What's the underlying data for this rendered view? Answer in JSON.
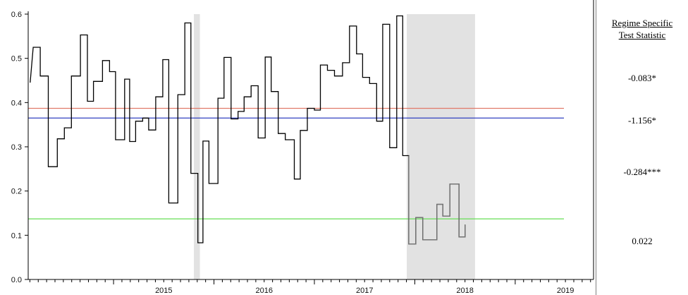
{
  "chart_data": {
    "type": "line",
    "ylim": [
      0,
      0.6
    ],
    "yticks": [
      "0.0",
      "0.1",
      "0.2",
      "0.3",
      "0.4",
      "0.5",
      "0.6"
    ],
    "xlim": [
      2014.15,
      2019.78
    ],
    "xticks": [
      "2015",
      "2016",
      "2017",
      "2018",
      "2019"
    ],
    "xtick_values": [
      2015,
      2016,
      2017,
      2018,
      2019
    ],
    "series": [
      {
        "color": "#000000",
        "values": [
          [
            2014.17,
            0.445
          ],
          [
            2014.2,
            0.525
          ],
          [
            2014.27,
            0.525
          ],
          [
            2014.27,
            0.46
          ],
          [
            2014.35,
            0.46
          ],
          [
            2014.35,
            0.255
          ],
          [
            2014.44,
            0.255
          ],
          [
            2014.44,
            0.318
          ],
          [
            2014.51,
            0.318
          ],
          [
            2014.51,
            0.343
          ],
          [
            2014.58,
            0.343
          ],
          [
            2014.58,
            0.46
          ],
          [
            2014.67,
            0.46
          ],
          [
            2014.67,
            0.553
          ],
          [
            2014.74,
            0.553
          ],
          [
            2014.74,
            0.403
          ],
          [
            2014.8,
            0.403
          ],
          [
            2014.8,
            0.448
          ],
          [
            2014.89,
            0.448
          ],
          [
            2014.89,
            0.495
          ],
          [
            2014.96,
            0.495
          ],
          [
            2014.96,
            0.47
          ],
          [
            2015.02,
            0.47
          ],
          [
            2015.02,
            0.316
          ],
          [
            2015.11,
            0.316
          ],
          [
            2015.11,
            0.453
          ],
          [
            2015.16,
            0.453
          ],
          [
            2015.16,
            0.312
          ],
          [
            2015.22,
            0.312
          ],
          [
            2015.22,
            0.358
          ],
          [
            2015.29,
            0.358
          ],
          [
            2015.29,
            0.365
          ],
          [
            2015.35,
            0.365
          ],
          [
            2015.35,
            0.338
          ],
          [
            2015.42,
            0.338
          ],
          [
            2015.42,
            0.413
          ],
          [
            2015.49,
            0.413
          ],
          [
            2015.49,
            0.497
          ],
          [
            2015.55,
            0.497
          ],
          [
            2015.55,
            0.173
          ],
          [
            2015.64,
            0.173
          ],
          [
            2015.64,
            0.418
          ],
          [
            2015.71,
            0.418
          ],
          [
            2015.71,
            0.58
          ],
          [
            2015.77,
            0.58
          ],
          [
            2015.77,
            0.24
          ],
          [
            2015.84,
            0.24
          ],
          [
            2015.84,
            0.083
          ],
          [
            2015.89,
            0.083
          ],
          [
            2015.89,
            0.313
          ],
          [
            2015.95,
            0.313
          ],
          [
            2015.95,
            0.217
          ],
          [
            2016.04,
            0.217
          ],
          [
            2016.04,
            0.41
          ],
          [
            2016.1,
            0.41
          ],
          [
            2016.1,
            0.502
          ],
          [
            2016.17,
            0.502
          ],
          [
            2016.17,
            0.363
          ],
          [
            2016.24,
            0.363
          ],
          [
            2016.24,
            0.38
          ],
          [
            2016.3,
            0.38
          ],
          [
            2016.3,
            0.413
          ],
          [
            2016.37,
            0.413
          ],
          [
            2016.37,
            0.438
          ],
          [
            2016.44,
            0.438
          ],
          [
            2016.44,
            0.32
          ],
          [
            2016.51,
            0.32
          ],
          [
            2016.51,
            0.503
          ],
          [
            2016.57,
            0.503
          ],
          [
            2016.57,
            0.425
          ],
          [
            2016.64,
            0.425
          ],
          [
            2016.64,
            0.33
          ],
          [
            2016.71,
            0.33
          ],
          [
            2016.71,
            0.316
          ],
          [
            2016.8,
            0.316
          ],
          [
            2016.8,
            0.227
          ],
          [
            2016.86,
            0.227
          ],
          [
            2016.86,
            0.337
          ],
          [
            2016.93,
            0.337
          ],
          [
            2016.93,
            0.387
          ],
          [
            2017.0,
            0.387
          ],
          [
            2017.0,
            0.383
          ],
          [
            2017.06,
            0.383
          ],
          [
            2017.06,
            0.485
          ],
          [
            2017.13,
            0.485
          ],
          [
            2017.13,
            0.473
          ],
          [
            2017.2,
            0.473
          ],
          [
            2017.2,
            0.46
          ],
          [
            2017.28,
            0.46
          ],
          [
            2017.28,
            0.49
          ],
          [
            2017.35,
            0.49
          ],
          [
            2017.35,
            0.573
          ],
          [
            2017.42,
            0.573
          ],
          [
            2017.42,
            0.51
          ],
          [
            2017.48,
            0.51
          ],
          [
            2017.48,
            0.457
          ],
          [
            2017.55,
            0.457
          ],
          [
            2017.55,
            0.443
          ],
          [
            2017.62,
            0.443
          ],
          [
            2017.62,
            0.358
          ],
          [
            2017.68,
            0.358
          ],
          [
            2017.68,
            0.577
          ],
          [
            2017.75,
            0.577
          ],
          [
            2017.75,
            0.298
          ],
          [
            2017.82,
            0.298
          ],
          [
            2017.82,
            0.596
          ],
          [
            2017.88,
            0.596
          ],
          [
            2017.88,
            0.28
          ],
          [
            2017.94,
            0.28
          ],
          [
            2017.94,
            0.08
          ],
          [
            2018.01,
            0.08
          ],
          [
            2018.01,
            0.14
          ],
          [
            2018.08,
            0.14
          ],
          [
            2018.08,
            0.09
          ],
          [
            2018.22,
            0.09
          ],
          [
            2018.22,
            0.17
          ],
          [
            2018.28,
            0.17
          ],
          [
            2018.28,
            0.143
          ],
          [
            2018.35,
            0.143
          ],
          [
            2018.35,
            0.216
          ],
          [
            2018.44,
            0.216
          ],
          [
            2018.44,
            0.096
          ],
          [
            2018.5,
            0.096
          ],
          [
            2018.5,
            0.124
          ]
        ]
      }
    ],
    "hlines": [
      {
        "color": "#e07a6a",
        "y": 0.387
      },
      {
        "color": "#3040c0",
        "y": 0.365
      },
      {
        "color": "#66dd55",
        "y": 0.137
      }
    ],
    "shaded": [
      {
        "color": "#e2e2e2",
        "from": 2015.8,
        "to": 2015.86
      },
      {
        "color": "#e2e2e2",
        "from": 2017.92,
        "to": 2018.6
      }
    ]
  },
  "side_panel": {
    "title_line1": "Regime Specific",
    "title_line2": "Test Statistic",
    "stats": [
      "-0.083*",
      "-1.156*",
      "-0.284***",
      "0.022"
    ]
  }
}
